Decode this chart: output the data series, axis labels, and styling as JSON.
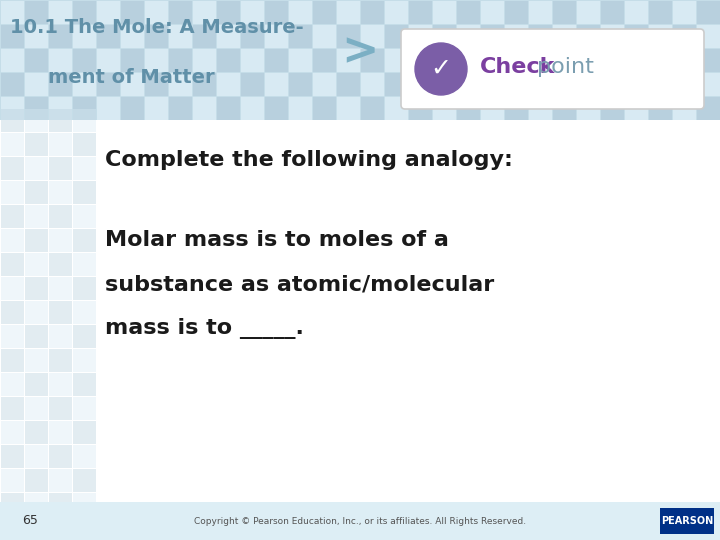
{
  "bg_color": "#ffffff",
  "header_bg_color": "#c5dde8",
  "grid_light": "#d8eaf3",
  "grid_dark": "#b8d0de",
  "title_line1": "10.1 The Mole: A Measure-",
  "title_line2": "ment of Matter",
  "title_color": "#6090a8",
  "arrow_color": "#7bafc4",
  "checkpoint_check_color": "#7b5ea7",
  "body_line1": "Complete the following analogy:",
  "body_line2": "Molar mass is to moles of a",
  "body_line3": "substance as atomic/molecular",
  "body_line4": "mass is to _____.",
  "body_color": "#1a1a1a",
  "footer_text": "Copyright © Pearson Education, Inc., or its affiliates. All Rights Reserved.",
  "footer_number": "65",
  "footer_color": "#555555",
  "pearson_text": "PEARSON",
  "pearson_bg": "#003087",
  "pearson_text_color": "#ffffff"
}
